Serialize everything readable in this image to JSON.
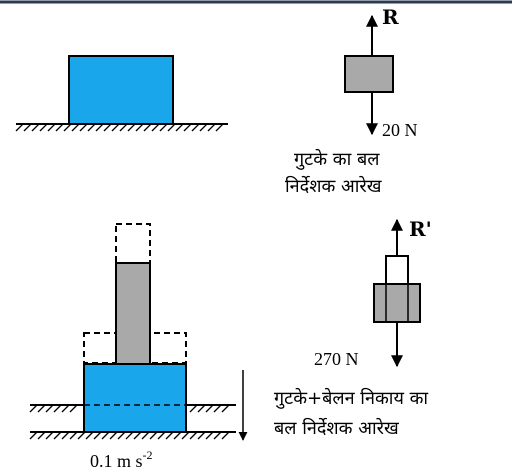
{
  "colors": {
    "block": "#1aa6ea",
    "grey": "#a9a9a9",
    "line": "#000000",
    "border": "#2a3a52"
  },
  "top": {
    "force_up": "R",
    "force_down": "20 N",
    "caption_line1": "गुटके का बल",
    "caption_line2": "निर्देशक आरेख"
  },
  "bottom": {
    "force_up": "R'",
    "force_down": "270 N",
    "acceleration": "0.1 m s",
    "acceleration_exp": "-2",
    "caption_line1": "गुटके+बेलन निकाय का",
    "caption_line2": "बल निर्देशक आरेख"
  }
}
